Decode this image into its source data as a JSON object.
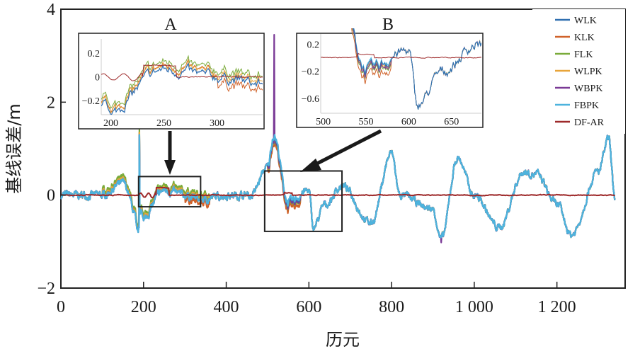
{
  "chart_data": {
    "type": "line",
    "title": "",
    "xlabel": "历元",
    "ylabel": "基线误差/m",
    "xlim": [
      0,
      1365
    ],
    "ylim": [
      -2,
      4
    ],
    "xticks": [
      0,
      200,
      400,
      600,
      800,
      1000,
      1200
    ],
    "xtick_labels": [
      "0",
      "200",
      "400",
      "600",
      "800",
      "1 000",
      "1 200"
    ],
    "yticks": [
      -2,
      0,
      2,
      4
    ],
    "ytick_labels": [
      "−2",
      "0",
      "2",
      "4"
    ],
    "grid": false,
    "legend": {
      "position": "top-right"
    },
    "series": [
      {
        "name": "WLK",
        "color": "#2f6fb0"
      },
      {
        "name": "KLK",
        "color": "#d0622a"
      },
      {
        "name": "FLK",
        "color": "#7aab3a"
      },
      {
        "name": "WLPK",
        "color": "#e8a53a"
      },
      {
        "name": "WBPK",
        "color": "#7a3a96"
      },
      {
        "name": "FBPK",
        "color": "#4db3dd"
      },
      {
        "name": "DF-AR",
        "color": "#9e2a2b"
      }
    ],
    "key_points": {
      "x": [
        0,
        100,
        150,
        190,
        250,
        300,
        340,
        400,
        460,
        500,
        515,
        550,
        600,
        610,
        640,
        680,
        750,
        800,
        820,
        900,
        920,
        960,
        1000,
        1060,
        1120,
        1150,
        1200,
        1235,
        1300,
        1325,
        1340
      ],
      "FBPK": [
        0.0,
        0.0,
        0.25,
        -0.6,
        0.1,
        0.0,
        -0.1,
        0.0,
        0.0,
        0.6,
        1.3,
        -0.15,
        0.1,
        -0.7,
        -0.2,
        0.2,
        -0.6,
        0.9,
        0.0,
        -0.3,
        -0.95,
        0.8,
        0.0,
        -0.7,
        0.5,
        0.45,
        -0.2,
        -0.85,
        0.5,
        1.2,
        -0.05
      ],
      "DF-AR": [
        0.0,
        0.0,
        0.0,
        0.0,
        0.1,
        0.0,
        0.0,
        0.0,
        0.0,
        0.0,
        0.0,
        0.0,
        0.05,
        0.0,
        0.0,
        0.0,
        0.0,
        0.0,
        0.0,
        0.0,
        0.0,
        0.0,
        0.0,
        0.0,
        0.0,
        0.0,
        0.0,
        0.0,
        0.0,
        0.0,
        0.0
      ]
    },
    "spikes": [
      {
        "series": "FBPK",
        "x": 190,
        "y": 1.3
      },
      {
        "series": "WBPK",
        "x": 516,
        "y": 3.45
      }
    ],
    "insets": [
      {
        "label": "A",
        "xlim": [
          191,
          343
        ],
        "ylim": [
          -0.32,
          0.32
        ],
        "xticks": [
          200,
          250,
          300
        ],
        "xtick_labels": [
          "200",
          "250",
          "300"
        ],
        "yticks": [
          0.2,
          0,
          -0.2
        ],
        "ytick_labels": [
          "0.2",
          "0",
          "−0.2"
        ],
        "source_region": {
          "x": [
            188,
            338
          ],
          "y": [
            -0.25,
            0.4
          ]
        }
      },
      {
        "label": "B",
        "xlim": [
          497,
          685
        ],
        "ylim": [
          -0.82,
          0.35
        ],
        "xticks": [
          500,
          550,
          600,
          650
        ],
        "xtick_labels": [
          "500",
          "550",
          "600",
          "650"
        ],
        "yticks": [
          0.2,
          -0.2,
          -0.6
        ],
        "ytick_labels": [
          "0.2",
          "−0.2",
          "−0.6"
        ],
        "source_region": {
          "x": [
            493,
            680
          ],
          "y": [
            -0.78,
            0.52
          ]
        }
      }
    ]
  }
}
